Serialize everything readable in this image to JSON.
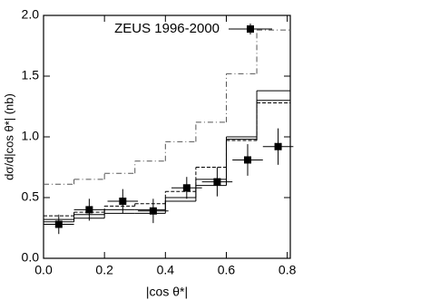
{
  "chart_data": {
    "type": "step-errorbar",
    "xlabel": "|cos θ*|",
    "ylabel": "dσ/d|cos θ*| (nb)",
    "xlim": [
      0,
      0.81
    ],
    "ylim": [
      0,
      2.0
    ],
    "xticks": [
      {
        "value": 0,
        "label": "0.0"
      },
      {
        "value": 0.2,
        "label": "0.2"
      },
      {
        "value": 0.4,
        "label": "0.4"
      },
      {
        "value": 0.6,
        "label": "0.6"
      },
      {
        "value": 0.8,
        "label": "0.8"
      }
    ],
    "yticks": [
      {
        "value": 0,
        "label": "0.0"
      },
      {
        "value": 0.5,
        "label": "0.5"
      },
      {
        "value": 1.0,
        "label": "1.0"
      },
      {
        "value": 1.5,
        "label": "1.5"
      },
      {
        "value": 2.0,
        "label": "2.0"
      }
    ],
    "points": {
      "name": "ZEUS 1996-2000",
      "color": "#000000",
      "x": [
        0.05,
        0.15,
        0.26,
        0.36,
        0.47,
        0.57,
        0.67,
        0.77
      ],
      "xerr": [
        0.05,
        0.05,
        0.05,
        0.05,
        0.05,
        0.05,
        0.05,
        0.05
      ],
      "values": [
        0.28,
        0.4,
        0.47,
        0.39,
        0.58,
        0.63,
        0.81,
        0.92
      ],
      "yerr": [
        0.08,
        0.09,
        0.1,
        0.1,
        0.09,
        0.12,
        0.13,
        0.15
      ]
    },
    "bins": [
      0,
      0.1,
      0.2,
      0.3,
      0.4,
      0.5,
      0.6,
      0.7,
      0.81
    ],
    "histograms": [
      {
        "dash": "6 3 1 3",
        "color": "#555555",
        "values": [
          0.61,
          0.65,
          0.7,
          0.8,
          0.96,
          1.12,
          1.52,
          1.88
        ]
      },
      {
        "dash": "none",
        "color": "#000000",
        "values": [
          0.3,
          0.33,
          0.37,
          0.37,
          0.47,
          0.6,
          1.0,
          1.38
        ]
      },
      {
        "dash": "none",
        "color": "#000000",
        "values": [
          0.32,
          0.36,
          0.4,
          0.4,
          0.5,
          0.65,
          0.98,
          1.3
        ]
      },
      {
        "dash": "4 2",
        "color": "#000000",
        "values": [
          0.35,
          0.38,
          0.43,
          0.45,
          0.55,
          0.75,
          0.97,
          1.28
        ]
      }
    ]
  }
}
